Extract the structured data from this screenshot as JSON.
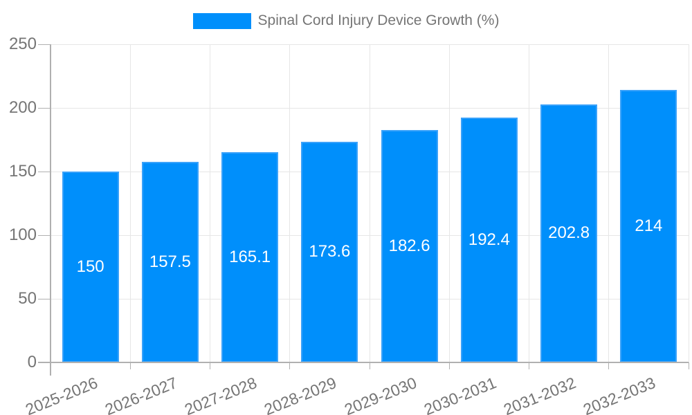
{
  "chart_data": {
    "type": "bar",
    "title": "",
    "legend": {
      "position": "top",
      "label": "Spinal Cord Injury Device Growth (%)"
    },
    "categories": [
      "2025-2026",
      "2026-2027",
      "2027-2028",
      "2028-2029",
      "2029-2030",
      "2030-2031",
      "2031-2032",
      "2032-2033"
    ],
    "series": [
      {
        "name": "Spinal Cord Injury Device Growth (%)",
        "values": [
          150,
          157.5,
          165.1,
          173.6,
          182.6,
          192.4,
          202.8,
          214
        ],
        "value_labels": [
          "150",
          "157.5",
          "165.1",
          "173.6",
          "182.6",
          "192.4",
          "202.8",
          "214"
        ]
      }
    ],
    "xlabel": "",
    "ylabel": "",
    "ylim": [
      0,
      250
    ],
    "yticks": [
      0,
      50,
      100,
      150,
      200,
      250
    ],
    "grid": {
      "horizontal": true,
      "vertical": true
    },
    "x_tick_label_rotation_deg": -22,
    "colors": {
      "bar": "#008FFB",
      "bar_edge": "#3AA2FA",
      "grid": "#E6E6E6",
      "axis": "#B0B0B0",
      "tick_label": "#757575",
      "legend_text": "#757575",
      "value_label": "#FFFFFF",
      "background": "#FFFFFF"
    }
  }
}
